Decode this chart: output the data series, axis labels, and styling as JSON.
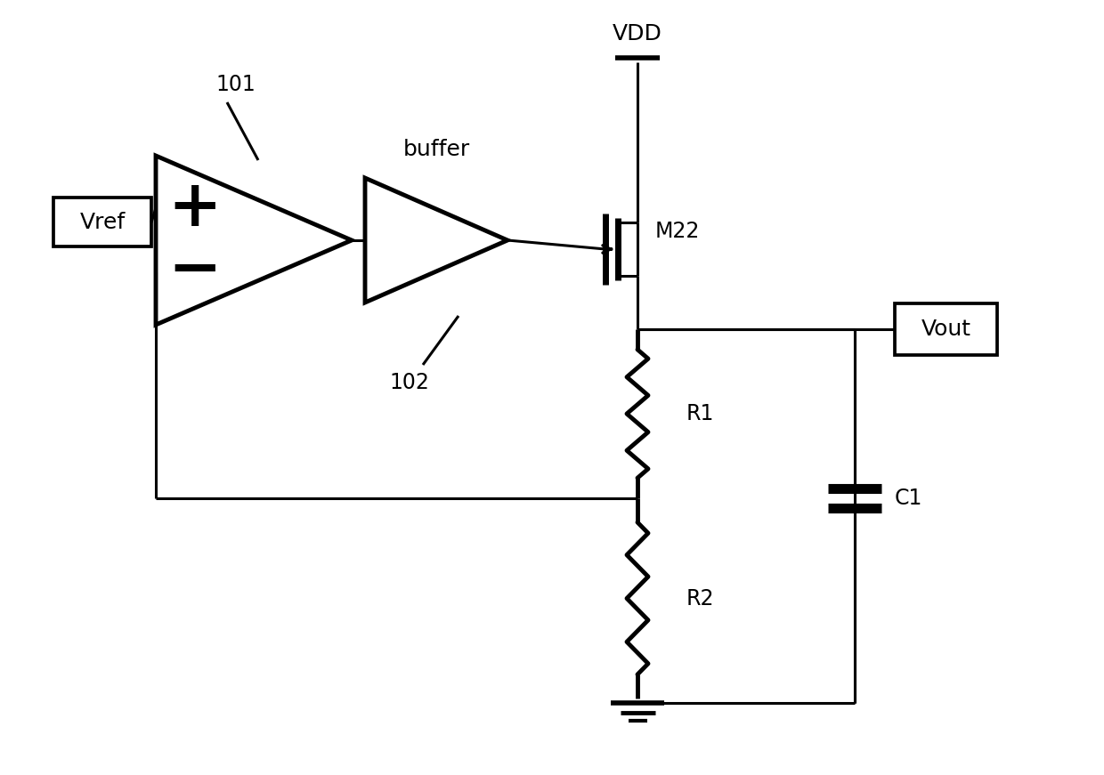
{
  "bg_color": "#ffffff",
  "line_color": "#000000",
  "lw": 2.2,
  "lw_thick": 3.5,
  "fig_width": 12.4,
  "fig_height": 8.71,
  "labels": {
    "vref": "Vref",
    "vout": "Vout",
    "vdd": "VDD",
    "buffer": "buffer",
    "m22": "M22",
    "r1": "R1",
    "r2": "R2",
    "c1": "C1",
    "n101": "101",
    "n102": "102"
  }
}
